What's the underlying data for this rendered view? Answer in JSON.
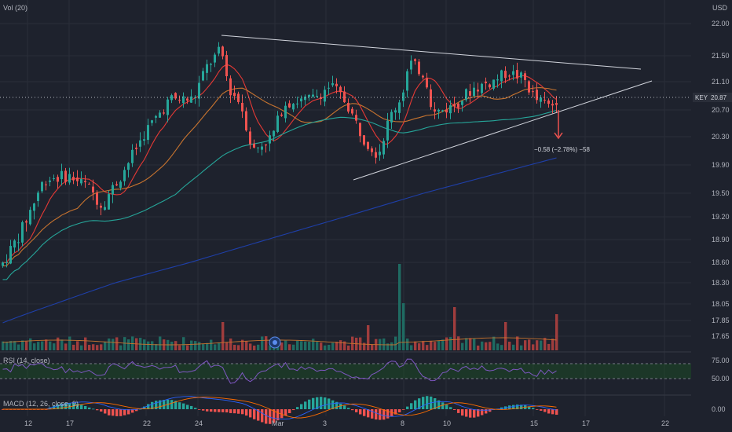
{
  "header": {
    "volume_label": "Vol (20)",
    "currency": "USD"
  },
  "key_badge": {
    "symbol": "KEY",
    "value": "20.87"
  },
  "annotation": {
    "text": "−0.58 (−2.78%) −58"
  },
  "panes": {
    "rsi_label": "RSI (14, close)",
    "macd_label": "MACD (12, 26, close, 9)"
  },
  "colors": {
    "background": "#1e222d",
    "up": "#26a69a",
    "down": "#ef5350",
    "ma_short": "#e53935",
    "ma_mid": "#c8742f",
    "ma_long": "#26a69a",
    "ma_200": "#1e3fa8",
    "trendline": "#d1d4dc",
    "rsi_band": "#1b5e20",
    "rsi_line": "#7e57c2",
    "arrow": "#ef5350"
  },
  "chart_data": {
    "type": "candlestick",
    "ylim": [
      17.5,
      22.1
    ],
    "y_ticks": [
      "22.00",
      "21.50",
      "21.10",
      "20.70",
      "20.30",
      "19.90",
      "19.50",
      "19.20",
      "18.90",
      "18.60",
      "18.30",
      "18.05",
      "17.85",
      "17.65"
    ],
    "y_tick_values": [
      22.0,
      21.5,
      21.1,
      20.7,
      20.3,
      19.9,
      19.5,
      19.2,
      18.9,
      18.6,
      18.3,
      18.05,
      17.85,
      17.65
    ],
    "x_ticks": [
      "12",
      "17",
      "22",
      "24",
      "Mar",
      "3",
      "8",
      "10",
      "15",
      "17",
      "22"
    ],
    "candles_count": 142,
    "rsi_ticks": [
      "75.00",
      "50.00"
    ],
    "macd_ticks": [
      "0.00"
    ],
    "last_close": 20.87,
    "change": "-0.58 (-2.78%)"
  }
}
